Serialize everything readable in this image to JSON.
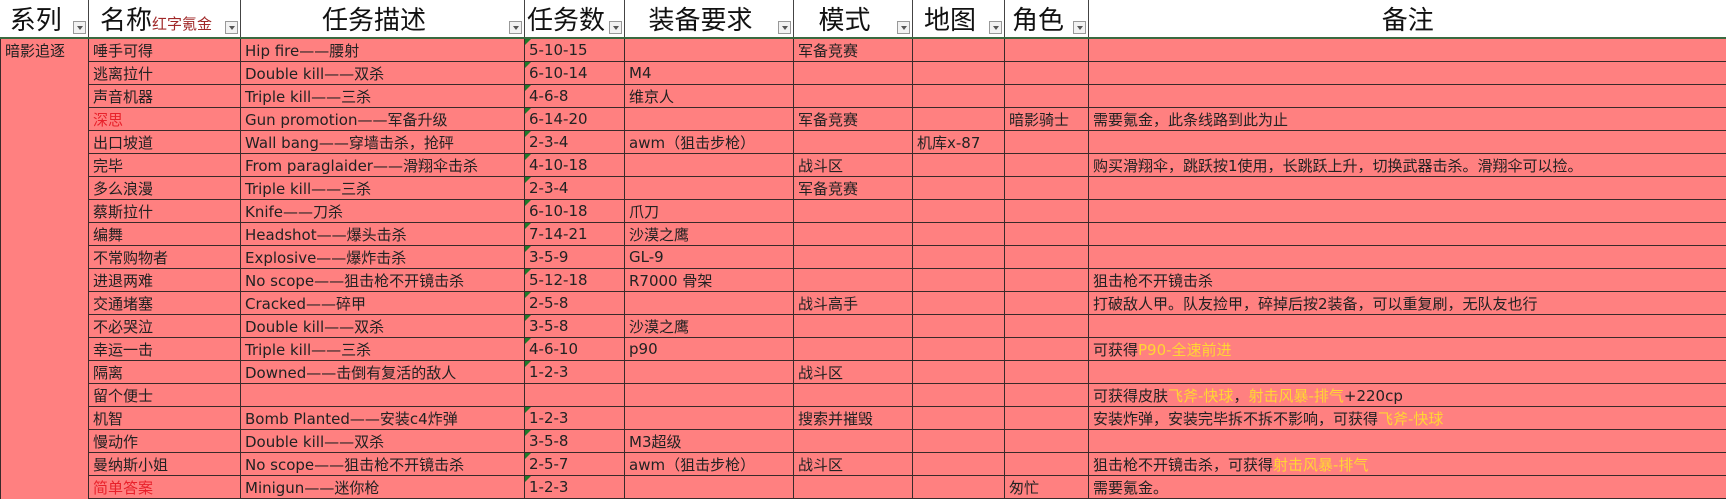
{
  "colors": {
    "row_bg": "#ff8080",
    "highlight_name": "#e8202a",
    "reward_text": "#ffd633",
    "header_sub": "#a02828"
  },
  "headers": [
    "系列",
    "名称",
    "任务描述",
    "任务数",
    "装备要求",
    "模式",
    "地图",
    "角色",
    "备注"
  ],
  "header_sub": "红字氪金",
  "series": "暗影追逐",
  "rows": [
    {
      "name": "唾手可得",
      "desc": "Hip fire——腰射",
      "count": "5-10-15",
      "gear": "",
      "mode": "军备竞赛",
      "map": "",
      "role": "",
      "note": ""
    },
    {
      "name": "逃离拉什",
      "desc": "Double kill——双杀",
      "count": "6-10-14",
      "gear": "M4",
      "mode": "",
      "map": "",
      "role": "",
      "note": ""
    },
    {
      "name": "声音机器",
      "desc": "Triple kill——三杀",
      "count": "4-6-8",
      "gear": "维京人",
      "mode": "",
      "map": "",
      "role": "",
      "note": ""
    },
    {
      "name": "深思",
      "red": true,
      "desc": "Gun promotion——军备升级",
      "count": "6-14-20",
      "gear": "",
      "mode": "军备竞赛",
      "map": "",
      "role": "暗影骑士",
      "note": "需要氪金，此条线路到此为止"
    },
    {
      "name": "出口坡道",
      "desc": "Wall bang——穿墙击杀，抢砰",
      "count": "2-3-4",
      "gear": "awm（狙击步枪）",
      "mode": "",
      "map": "机库x-87",
      "role": "",
      "note": ""
    },
    {
      "name": "完毕",
      "desc": "From paraglaider——滑翔伞击杀",
      "count": "4-10-18",
      "gear": "",
      "mode": "战斗区",
      "map": "",
      "role": "",
      "note": "购买滑翔伞，跳跃按1使用，长跳跃上升，切换武器击杀。滑翔伞可以捡。"
    },
    {
      "name": "多么浪漫",
      "desc": "Triple kill——三杀",
      "count": "2-3-4",
      "gear": "",
      "mode": "军备竞赛",
      "map": "",
      "role": "",
      "note": ""
    },
    {
      "name": "蔡斯拉什",
      "desc": "Knife——刀杀",
      "count": "6-10-18",
      "gear": "爪刀",
      "mode": "",
      "map": "",
      "role": "",
      "note": ""
    },
    {
      "name": "编舞",
      "desc": "Headshot——爆头击杀",
      "count": "7-14-21",
      "gear": "沙漠之鹰",
      "mode": "",
      "map": "",
      "role": "",
      "note": ""
    },
    {
      "name": "不常购物者",
      "desc": "Explosive——爆炸击杀",
      "count": "3-5-9",
      "gear": "GL-9",
      "mode": "",
      "map": "",
      "role": "",
      "note": ""
    },
    {
      "name": "进退两难",
      "desc": "No scope——狙击枪不开镜击杀",
      "count": "5-12-18",
      "gear": "R7000 骨架",
      "mode": "",
      "map": "",
      "role": "",
      "note": "狙击枪不开镜击杀"
    },
    {
      "name": "交通堵塞",
      "desc": "Cracked——碎甲",
      "count": "2-5-8",
      "gear": "",
      "mode": "战斗高手",
      "map": "",
      "role": "",
      "note": "打破敌人甲。队友捡甲，碎掉后按2装备，可以重复刷，无队友也行"
    },
    {
      "name": "不必哭泣",
      "desc": "Double kill——双杀",
      "count": "3-5-8",
      "gear": "沙漠之鹰",
      "mode": "",
      "map": "",
      "role": "",
      "note": ""
    },
    {
      "name": "幸运一击",
      "desc": "Triple kill——三杀",
      "count": "4-6-10",
      "gear": "p90",
      "mode": "",
      "map": "",
      "role": "",
      "note": "可获得",
      "note_gold": "P90-全速前进"
    },
    {
      "name": "隔离",
      "desc": "Downed——击倒有复活的敌人",
      "count": "1-2-3",
      "gear": "",
      "mode": "战斗区",
      "map": "",
      "role": "",
      "note": ""
    },
    {
      "name": "留个便士",
      "desc": "",
      "count": "",
      "gear": "",
      "mode": "",
      "map": "",
      "role": "",
      "note": "可获得皮肤",
      "note_gold": "飞斧-快球",
      "note_mid": "，",
      "note_gold2": "射击风暴-排气",
      "note_tail": "+220cp"
    },
    {
      "name": "机智",
      "desc": "Bomb Planted——安装c4炸弹",
      "count": "1-2-3",
      "gear": "",
      "mode": "搜索并摧毁",
      "map": "",
      "role": "",
      "note": "安装炸弹，安装完毕拆不拆不影响，可获得",
      "note_gold": "飞斧-快球"
    },
    {
      "name": "慢动作",
      "desc": "Double kill——双杀",
      "count": "3-5-8",
      "gear": "M3超级",
      "mode": "",
      "map": "",
      "role": "",
      "note": ""
    },
    {
      "name": "曼纳斯小姐",
      "desc": "No scope——狙击枪不开镜击杀",
      "count": "2-5-7",
      "gear": "awm（狙击步枪）",
      "mode": "战斗区",
      "map": "",
      "role": "",
      "note": "狙击枪不开镜击杀，可获得",
      "note_gold": "射击风暴-排气"
    },
    {
      "name": "简单答案",
      "red": true,
      "desc": "Minigun——迷你枪",
      "count": "1-2-3",
      "gear": "",
      "mode": "",
      "map": "",
      "role": "匆忙",
      "note": "需要氪金。"
    }
  ]
}
